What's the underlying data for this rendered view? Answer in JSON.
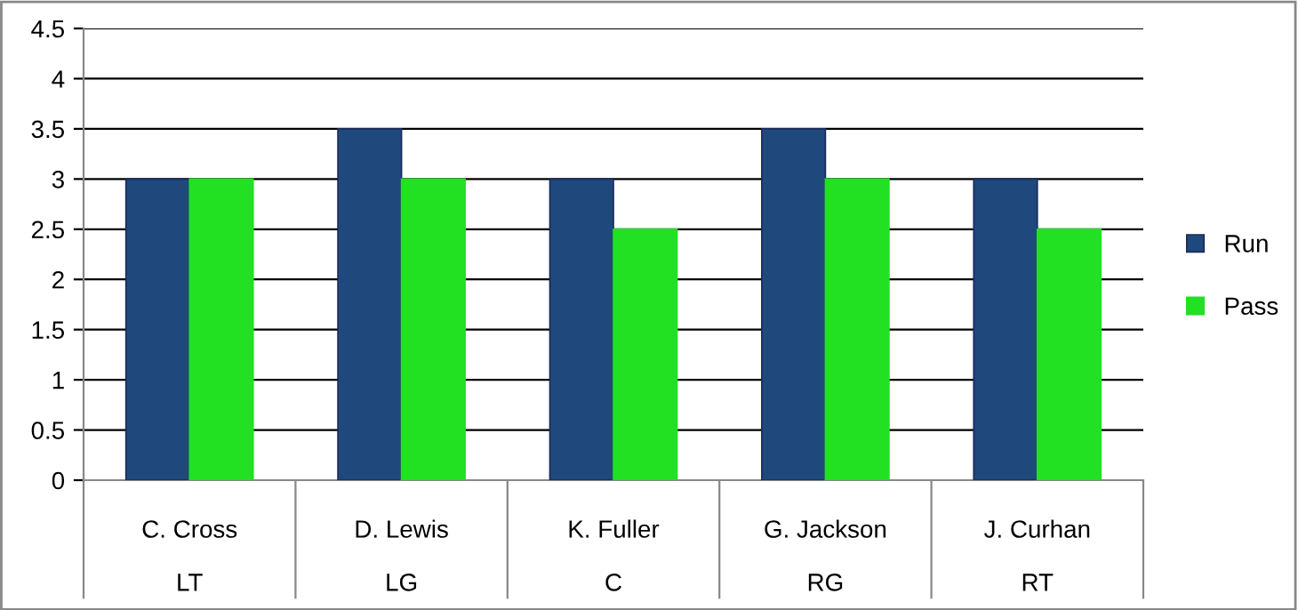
{
  "chart_data": {
    "type": "bar",
    "categories": [
      "C. Cross\n\nLT",
      "D. Lewis\n\nLG",
      "K. Fuller\n\nC",
      "G. Jackson\n\nRG",
      "J. Curhan\n\nRT"
    ],
    "series": [
      {
        "name": "Run",
        "color": "#1f497d",
        "values": [
          3,
          3.5,
          3,
          3.5,
          3
        ]
      },
      {
        "name": "Pass",
        "color": "#22e022",
        "values": [
          3,
          3,
          2.5,
          3,
          2.5
        ]
      }
    ],
    "ylim": [
      0,
      4.5
    ],
    "yticks": [
      0,
      0.5,
      1,
      1.5,
      2,
      2.5,
      3,
      3.5,
      4,
      4.5
    ],
    "grid": "y",
    "legend": "right"
  }
}
